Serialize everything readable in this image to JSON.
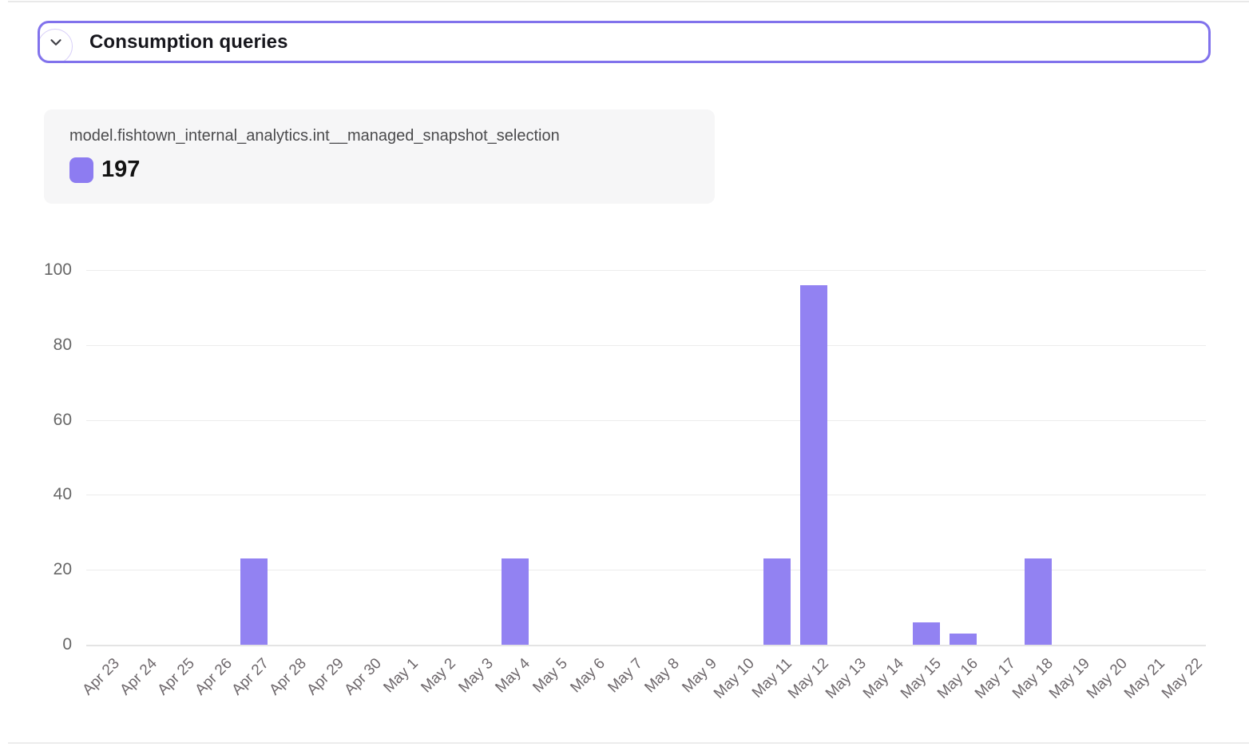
{
  "header": {
    "title": "Consumption queries",
    "chevron_icon": "chevron-down",
    "border_color": "#8172ec"
  },
  "legend": {
    "series_name": "model.fishtown_internal_analytics.int__managed_snapshot_selection",
    "total": "197",
    "swatch_color": "#8d7cf1"
  },
  "chart_data": {
    "type": "bar",
    "title": "",
    "xlabel": "",
    "ylabel": "",
    "categories": [
      "Apr 23",
      "Apr 24",
      "Apr 25",
      "Apr 26",
      "Apr 27",
      "Apr 28",
      "Apr 29",
      "Apr 30",
      "May 1",
      "May 2",
      "May 3",
      "May 4",
      "May 5",
      "May 6",
      "May 7",
      "May 8",
      "May 9",
      "May 10",
      "May 11",
      "May 12",
      "May 13",
      "May 14",
      "May 15",
      "May 16",
      "May 17",
      "May 18",
      "May 19",
      "May 20",
      "May 21",
      "May 22"
    ],
    "values": [
      0,
      0,
      0,
      0,
      23,
      0,
      0,
      0,
      0,
      0,
      0,
      23,
      0,
      0,
      0,
      0,
      0,
      0,
      23,
      96,
      0,
      0,
      6,
      3,
      0,
      23,
      0,
      0,
      0,
      0
    ],
    "series_total": 197,
    "ylim": [
      0,
      100
    ],
    "yticks": [
      0,
      20,
      40,
      60,
      80,
      100
    ],
    "bar_color": "#9282f2",
    "grid": true,
    "x_tick_rotation": -45,
    "legend_position": "top-left"
  }
}
